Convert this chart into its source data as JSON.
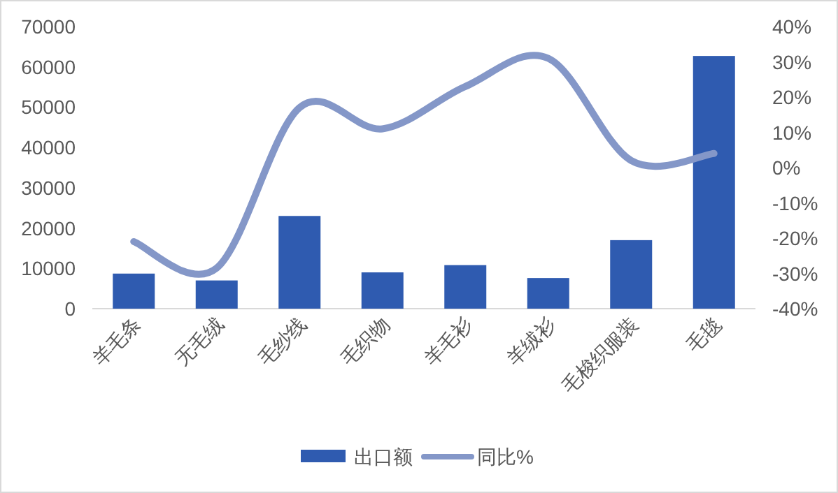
{
  "chart_data": {
    "type": "bar",
    "categories": [
      "羊毛条",
      "无毛绒",
      "毛纱线",
      "毛织物",
      "羊毛衫",
      "羊绒衫",
      "毛梭织服装",
      "毛毯"
    ],
    "series": [
      {
        "name": "出口额",
        "color": "#2f5bb0",
        "values": [
          8700,
          7000,
          23000,
          9000,
          10800,
          7600,
          17000,
          62700
        ]
      },
      {
        "name": "同比%",
        "type": "line",
        "axis": "y2",
        "color": "#8497c8",
        "values": [
          -21,
          -28.5,
          17,
          11,
          23,
          31,
          2,
          4
        ]
      }
    ],
    "ylim": [
      0,
      70000
    ],
    "yticks": [
      0,
      10000,
      20000,
      30000,
      40000,
      50000,
      60000,
      70000
    ],
    "y2lim": [
      -40,
      40
    ],
    "y2ticks": [
      {
        "value": -40,
        "label": "-40%"
      },
      {
        "value": -30,
        "label": "-30%"
      },
      {
        "value": -20,
        "label": "-20%"
      },
      {
        "value": -10,
        "label": "-10%"
      },
      {
        "value": 0,
        "label": "0%"
      },
      {
        "value": 10,
        "label": "10%"
      },
      {
        "value": 20,
        "label": "20%"
      },
      {
        "value": 30,
        "label": "30%"
      },
      {
        "value": 40,
        "label": "40%"
      }
    ],
    "legend": "bottom"
  }
}
